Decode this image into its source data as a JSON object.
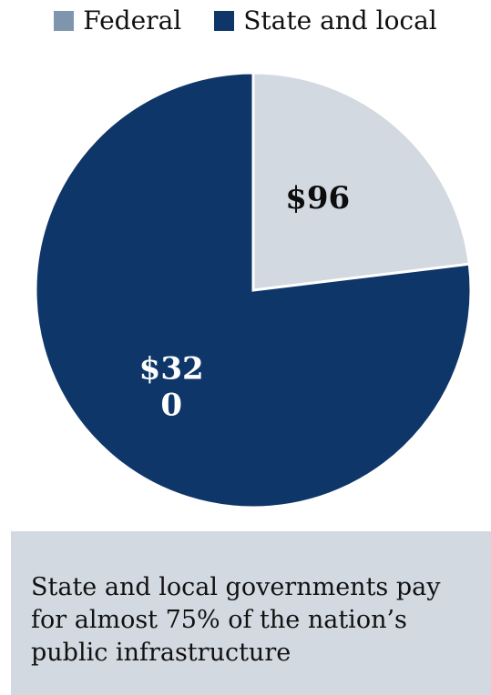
{
  "colors": {
    "federal": "#7f95ad",
    "federal_slice": "#d2d9e1",
    "state_local": "#0e3668",
    "federal_label": "#0d0d0d",
    "state_local_label": "#ffffff"
  },
  "legend": {
    "federal_label": "Federal",
    "state_local_label": "State and local"
  },
  "chart_data": {
    "type": "pie",
    "categories": [
      "Federal",
      "State and local"
    ],
    "values": [
      96,
      320
    ],
    "data_labels": [
      "$96",
      "$32\n0"
    ],
    "legend_position": "top"
  },
  "caption": {
    "text": "State and local governments pay for almost 75% of the nation’s public infrastructure"
  }
}
